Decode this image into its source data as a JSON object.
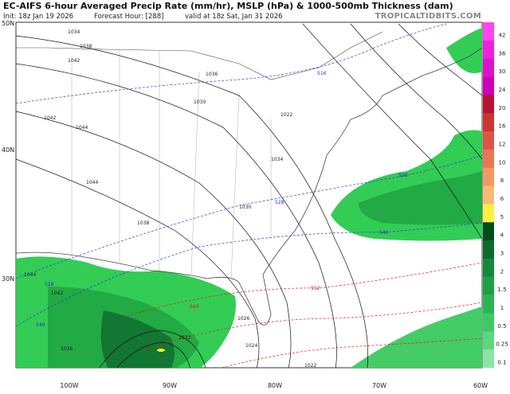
{
  "header": {
    "title": "EC-AIFS 6-hour Averaged Precip Rate (mm/hr), MSLP (hPa) & 1000-500mb Thickness (dam)",
    "init": "Init: 18z Jan 19 2026",
    "forecast_hour": "Forecast Hour: [288]",
    "valid": "valid at 18z Sat, Jan 31 2026",
    "site": "TROPICALTIDBITS.COM"
  },
  "latitude_labels": [
    "50N",
    "40N",
    "30N"
  ],
  "longitude_labels": [
    "100W",
    "90W",
    "80W",
    "70W",
    "60W"
  ],
  "colorbar": {
    "labels": [
      "42",
      "36",
      "30",
      "24",
      "20",
      "16",
      "12",
      "10",
      "8",
      "6",
      "5",
      "4",
      "3",
      "2",
      "1.5",
      "1",
      "0.5",
      "0.25",
      "0.1"
    ]
  },
  "contour_labels": [
    "1034",
    "1038",
    "1042",
    "1036",
    "1030",
    "1042",
    "1044",
    "1044",
    "1038",
    "1034",
    "1022",
    "1030",
    "1026",
    "1024",
    "1022",
    "1022",
    "516",
    "528",
    "528",
    "540",
    "540",
    "552",
    "564",
    "1044",
    "1042",
    "1036",
    "528"
  ]
}
